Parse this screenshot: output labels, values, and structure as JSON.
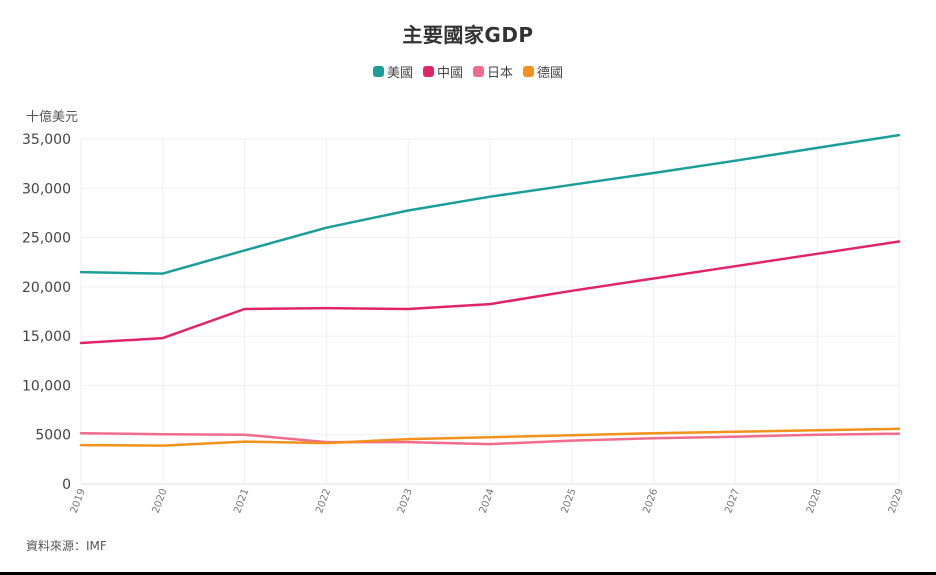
{
  "chart_data": {
    "type": "line",
    "title": "主要國家GDP",
    "ylabel": "十億美元",
    "xlabel": "",
    "source_note": "資料來源：IMF",
    "x": [
      "2019",
      "2020",
      "2021",
      "2022",
      "2023",
      "2024",
      "2025",
      "2026",
      "2027",
      "2028",
      "2029"
    ],
    "ylim": [
      0,
      35000
    ],
    "yticks": [
      "0",
      "5000",
      "10,000",
      "15,000",
      "20,000",
      "25,000",
      "30,000",
      "35,000"
    ],
    "ytick_values": [
      0,
      5000,
      10000,
      15000,
      20000,
      25000,
      30000,
      35000
    ],
    "grid": true,
    "legend_position": "top-center",
    "series": [
      {
        "name": "美國",
        "color": "#1a9e9a",
        "values": [
          21500,
          21350,
          23700,
          26000,
          27750,
          29150,
          30350,
          31550,
          32800,
          34100,
          35400
        ]
      },
      {
        "name": "中國",
        "color": "#e0246a",
        "values": [
          14300,
          14800,
          17750,
          17850,
          17750,
          18250,
          19600,
          20850,
          22100,
          23350,
          24600
        ]
      },
      {
        "name": "日本",
        "color": "#f06c8c",
        "values": [
          5150,
          5050,
          5000,
          4250,
          4250,
          4050,
          4400,
          4650,
          4800,
          5000,
          5100
        ]
      },
      {
        "name": "德國",
        "color": "#f0921c",
        "values": [
          3950,
          3900,
          4300,
          4150,
          4550,
          4750,
          4950,
          5150,
          5300,
          5450,
          5600
        ]
      }
    ]
  }
}
